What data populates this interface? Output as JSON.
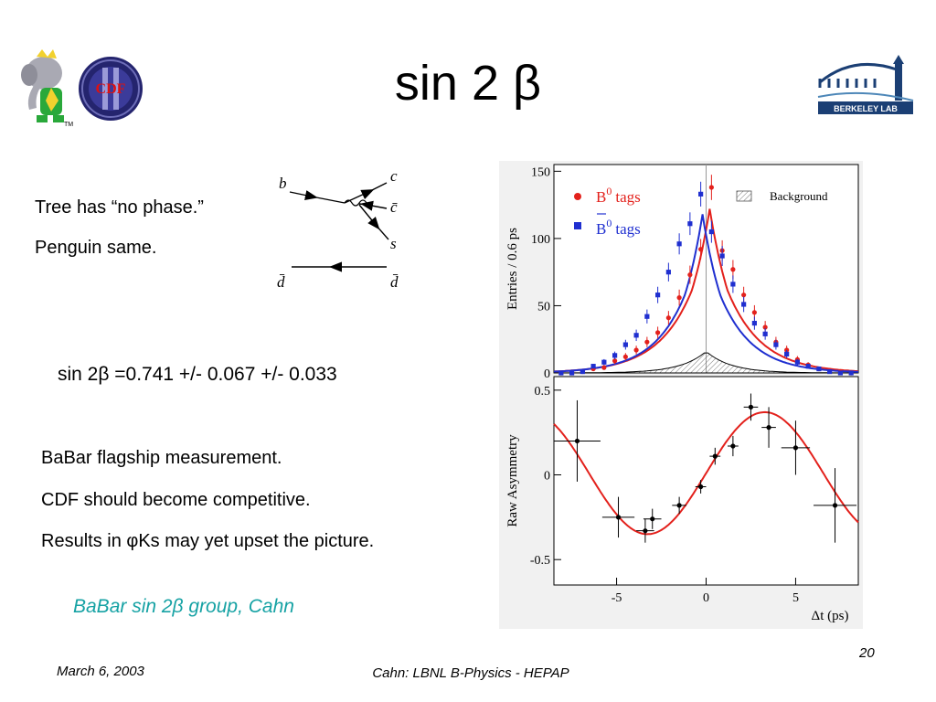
{
  "slide": {
    "title": "sin 2 β",
    "text_lines": [
      "Tree has “no phase.”",
      "Penguin same."
    ],
    "result": "sin 2β =0.741 +/- 0.067 +/- 0.033",
    "bullets": [
      "BaBar flagship measurement.",
      "CDF should become competitive.",
      "Results in φKs may yet upset the picture."
    ],
    "credit": "BaBar sin 2β group, Cahn",
    "footer_date": "March 6, 2003",
    "footer_center": "Cahn:  LBNL B-Physics - HEPAP",
    "page_number": "20"
  },
  "logos": {
    "babar_tm": "TM",
    "cdf_text": "CDF",
    "berkeley_text": "BERKELEY LAB"
  },
  "feynman": {
    "b": "b",
    "c": "c",
    "cbar": "c̄",
    "s": "s",
    "dbar_left": "d̄",
    "dbar_right": "d̄"
  },
  "colors": {
    "red": "#e3211c",
    "blue": "#1f2fd0",
    "credit": "#16a2a4"
  },
  "chart_data": [
    {
      "type": "scatter",
      "ylabel": "Entries / 0.6 ps",
      "xlim": [
        -8.5,
        8.5
      ],
      "ylim": [
        0,
        155
      ],
      "yticks": [
        0,
        50,
        100,
        150
      ],
      "legend": {
        "b0": "B",
        "b0bar": "B",
        "sup": "0",
        "tags": "tags",
        "background": "Background"
      },
      "series": [
        {
          "name": "B0 tags",
          "color": "#e3211c",
          "x": [
            -8.1,
            -7.5,
            -6.9,
            -6.3,
            -5.7,
            -5.1,
            -4.5,
            -3.9,
            -3.3,
            -2.7,
            -2.1,
            -1.5,
            -0.9,
            -0.3,
            0.3,
            0.9,
            1.5,
            2.1,
            2.7,
            3.3,
            3.9,
            4.5,
            5.1,
            5.7,
            6.3,
            6.9,
            7.5,
            8.1
          ],
          "y": [
            0,
            0,
            1,
            3,
            4,
            9,
            12,
            17,
            23,
            30,
            41,
            56,
            73,
            92,
            138,
            91,
            77,
            58,
            45,
            34,
            23,
            17,
            10,
            6,
            3,
            2,
            1,
            0
          ]
        },
        {
          "name": "B0bar tags",
          "color": "#1f2fd0",
          "x": [
            -8.1,
            -7.5,
            -6.9,
            -6.3,
            -5.7,
            -5.1,
            -4.5,
            -3.9,
            -3.3,
            -2.7,
            -2.1,
            -1.5,
            -0.9,
            -0.3,
            0.3,
            0.9,
            1.5,
            2.1,
            2.7,
            3.3,
            3.9,
            4.5,
            5.1,
            5.7,
            6.3,
            6.9,
            7.5,
            8.1
          ],
          "y": [
            0,
            0,
            1,
            5,
            8,
            13,
            21,
            28,
            42,
            58,
            75,
            96,
            111,
            133,
            105,
            87,
            66,
            51,
            37,
            29,
            21,
            14,
            8,
            5,
            3,
            1,
            0,
            0
          ]
        }
      ]
    },
    {
      "type": "scatter",
      "ylabel": "Raw Asymmetry",
      "xlabel": "Δt (ps)",
      "xlim": [
        -8.5,
        8.5
      ],
      "ylim": [
        -0.65,
        0.58
      ],
      "yticks": [
        -0.5,
        0,
        0.5
      ],
      "xticks": [
        -5,
        0,
        5
      ],
      "points": {
        "x": [
          -7.2,
          -4.9,
          -3.4,
          -3.0,
          -1.5,
          -0.3,
          0.5,
          1.5,
          2.5,
          3.5,
          5.0,
          7.2
        ],
        "y": [
          0.2,
          -0.25,
          -0.33,
          -0.26,
          -0.18,
          -0.07,
          0.11,
          0.17,
          0.4,
          0.28,
          0.16,
          -0.18
        ],
        "xerr": [
          1.3,
          0.9,
          0.5,
          0.5,
          0.4,
          0.3,
          0.3,
          0.3,
          0.4,
          0.4,
          0.8,
          1.2
        ],
        "yerr": [
          0.24,
          0.12,
          0.07,
          0.06,
          0.05,
          0.04,
          0.05,
          0.06,
          0.08,
          0.12,
          0.16,
          0.22
        ]
      }
    }
  ]
}
